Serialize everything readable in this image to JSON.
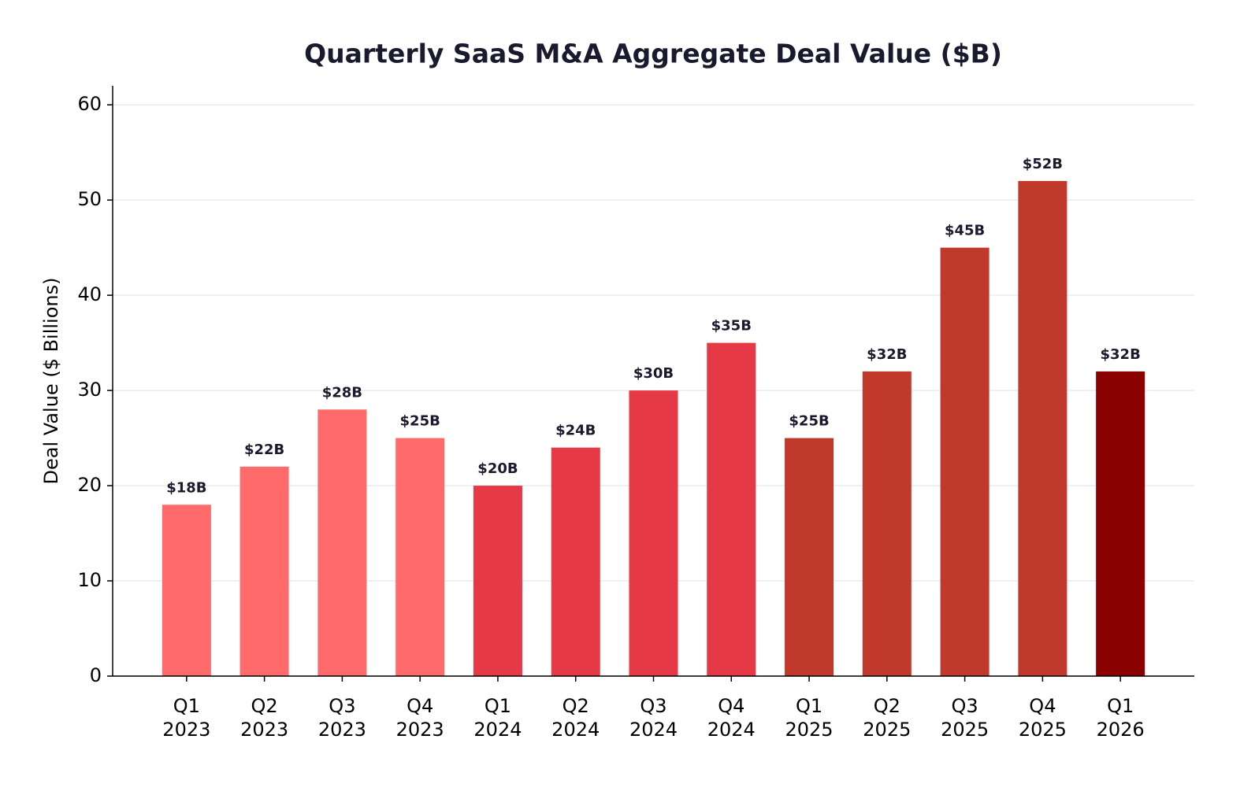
{
  "chart_data": {
    "type": "bar",
    "title": "Quarterly SaaS M&A Aggregate Deal Value ($B)",
    "ylabel": "Deal Value ($ Billions)",
    "categories": [
      "Q1\n2023",
      "Q2\n2023",
      "Q3\n2023",
      "Q4\n2023",
      "Q1\n2024",
      "Q2\n2024",
      "Q3\n2024",
      "Q4\n2024",
      "Q1\n2025",
      "Q2\n2025",
      "Q3\n2025",
      "Q4\n2025",
      "Q1\n2026"
    ],
    "values": [
      18,
      22,
      28,
      25,
      20,
      24,
      30,
      35,
      25,
      32,
      45,
      52,
      32
    ],
    "value_labels": [
      "$18B",
      "$22B",
      "$28B",
      "$25B",
      "$20B",
      "$24B",
      "$30B",
      "$35B",
      "$25B",
      "$32B",
      "$45B",
      "$52B",
      "$32B"
    ],
    "colors": [
      "#ff6b6b",
      "#ff6b6b",
      "#ff6b6b",
      "#ff6b6b",
      "#e63946",
      "#e63946",
      "#e63946",
      "#e63946",
      "#c0392b",
      "#c0392b",
      "#c0392b",
      "#c0392b",
      "#8b0000"
    ],
    "ylim": [
      0,
      62
    ],
    "yticks": [
      0,
      10,
      20,
      30,
      40,
      50,
      60
    ],
    "grid": true
  }
}
